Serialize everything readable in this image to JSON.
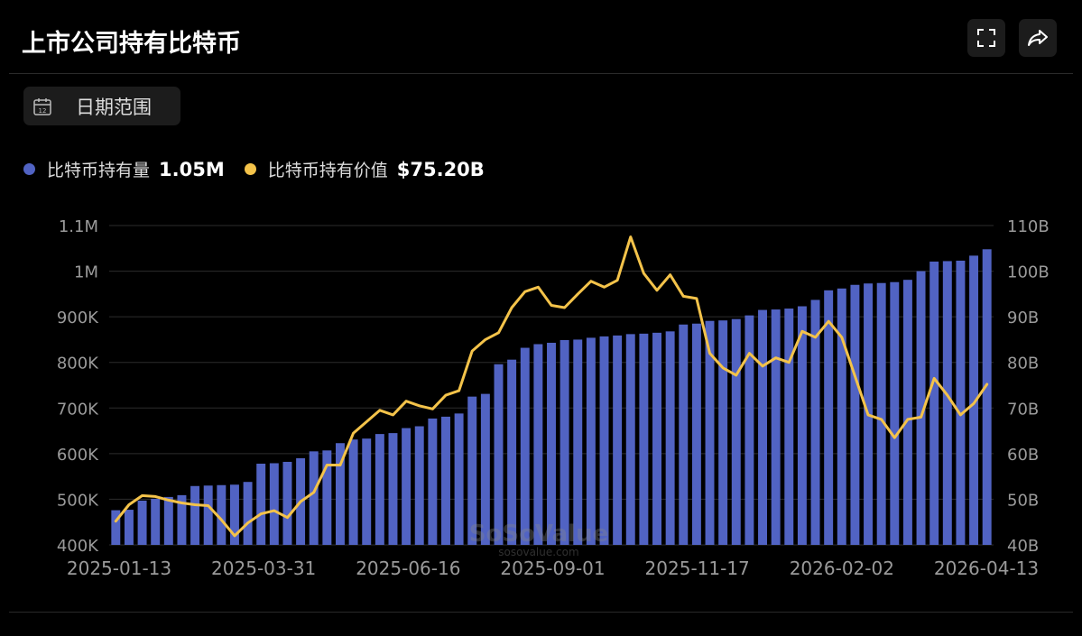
{
  "header": {
    "title": "上市公司持有比特币",
    "fullscreen_icon": "fullscreen-icon",
    "share_icon": "share-icon"
  },
  "date_range": {
    "label": "日期范围",
    "icon": "calendar-icon",
    "icon_day": "12"
  },
  "legend": [
    {
      "name": "比特币持有量",
      "value": "1.05M",
      "color": "#5163c3"
    },
    {
      "name": "比特币持有价值",
      "value": "$75.20B",
      "color": "#f4c34a"
    }
  ],
  "watermark": {
    "brand": "SoSoValue",
    "url": "sosovalue.com"
  },
  "chart_data": {
    "type": "bar+line",
    "x_tick_labels": [
      "2025-01-13",
      "2025-03-31",
      "2025-06-16",
      "2025-09-01",
      "2025-11-17",
      "2026-02-02",
      "2026-04-13"
    ],
    "left_axis": {
      "ylim": [
        400000,
        1100000
      ],
      "ticks": [
        "400K",
        "500K",
        "600K",
        "700K",
        "800K",
        "900K",
        "1M",
        "1.1M"
      ]
    },
    "right_axis": {
      "ylim": [
        40,
        110
      ],
      "ticks": [
        "40B",
        "50B",
        "60B",
        "70B",
        "80B",
        "90B",
        "100B",
        "110B"
      ]
    },
    "series": [
      {
        "name": "比特币持有量",
        "type": "bar",
        "axis": "left",
        "color": "#5163c3",
        "values": [
          476000,
          477000,
          497000,
          501000,
          505000,
          509000,
          529000,
          530000,
          531000,
          532000,
          538000,
          578000,
          579000,
          582000,
          590000,
          605000,
          607000,
          623000,
          631000,
          633000,
          643000,
          645000,
          656000,
          660000,
          677000,
          681000,
          688000,
          725000,
          731000,
          796000,
          806000,
          832000,
          840000,
          843000,
          849000,
          850000,
          854000,
          857000,
          859000,
          862000,
          863000,
          865000,
          868000,
          883000,
          885000,
          891000,
          892000,
          895000,
          903000,
          915000,
          916000,
          918000,
          923000,
          937000,
          958000,
          962000,
          970000,
          973000,
          974000,
          976000,
          981000,
          1000000,
          1021000,
          1022000,
          1023000,
          1034000,
          1048000
        ]
      },
      {
        "name": "比特币持有价值",
        "type": "line",
        "axis": "right",
        "color": "#f4c34a",
        "values": [
          45.2,
          48.8,
          50.8,
          50.6,
          49.8,
          49.2,
          48.8,
          48.6,
          45.5,
          42.0,
          44.8,
          46.8,
          47.5,
          46.0,
          49.5,
          51.5,
          57.5,
          57.5,
          64.5,
          67.0,
          69.5,
          68.5,
          71.5,
          70.5,
          69.8,
          72.8,
          73.8,
          82.5,
          85.0,
          86.5,
          92.0,
          95.5,
          96.5,
          92.5,
          92.0,
          95.0,
          97.8,
          96.5,
          98.0,
          107.5,
          99.5,
          95.8,
          99.2,
          94.5,
          94.0,
          82.0,
          78.8,
          77.2,
          82.0,
          79.2,
          81.0,
          80.0,
          86.8,
          85.5,
          89.0,
          85.5,
          77.0,
          68.5,
          67.5,
          63.5,
          67.5,
          68.0,
          76.5,
          72.8,
          68.5,
          71.0,
          75.2
        ]
      }
    ]
  }
}
